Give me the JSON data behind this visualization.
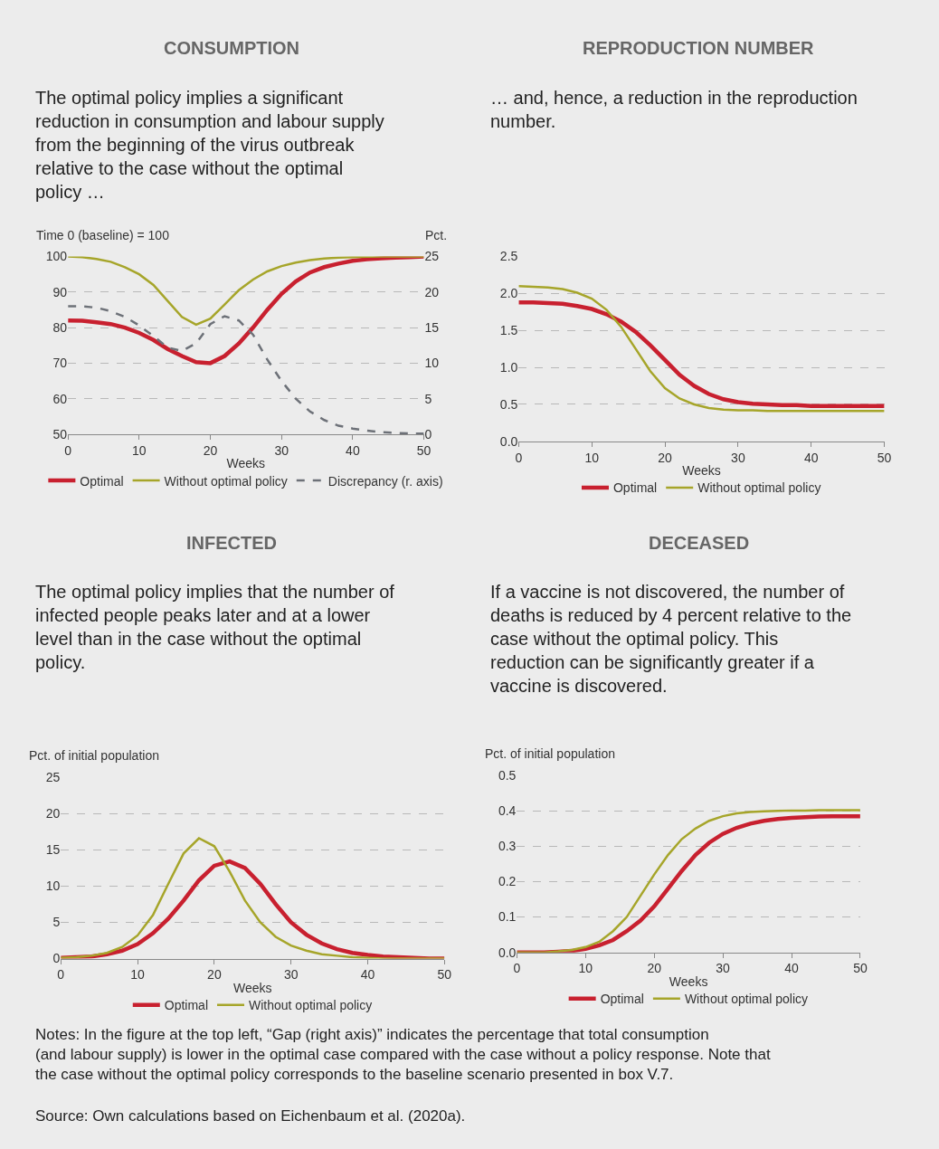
{
  "chart_data": [
    {
      "type": "line",
      "title": "CONSUMPTION",
      "subtitle": "The optimal policy implies a significant reduction in consumption and labour supply from the beginning of the virus outbreak relative to the case without the optimal policy …",
      "xlabel": "Weeks",
      "ylabel": "Time 0 (baseline) = 100",
      "y2label": "Pct.",
      "x": [
        0,
        2,
        4,
        6,
        8,
        10,
        12,
        14,
        16,
        18,
        20,
        22,
        24,
        26,
        28,
        30,
        32,
        34,
        36,
        38,
        40,
        42,
        44,
        46,
        48,
        50
      ],
      "series": [
        {
          "name": "Optimal",
          "color": "#c8202f",
          "values": [
            82,
            81.9,
            81.5,
            81,
            80,
            78.5,
            76.5,
            74,
            72,
            70.3,
            70,
            72,
            75.5,
            80,
            85,
            89.5,
            93,
            95.5,
            97,
            98,
            98.8,
            99.2,
            99.5,
            99.7,
            99.8,
            100
          ]
        },
        {
          "name": "Without optimal policy",
          "color": "#a6a52a",
          "values": [
            100,
            99.8,
            99.3,
            98.5,
            97,
            95,
            92,
            87.5,
            83,
            80.8,
            82.5,
            86.5,
            90.5,
            93.5,
            95.8,
            97.3,
            98.3,
            99,
            99.4,
            99.7,
            99.8,
            99.9,
            100,
            100,
            100,
            100
          ]
        },
        {
          "name": "Discrepancy (r. axis)",
          "color": "#6d7178",
          "line_style": "dashed",
          "axis": "y2",
          "values": [
            18,
            18,
            17.8,
            17.3,
            16.5,
            15.3,
            13.8,
            12.2,
            11.7,
            12.8,
            15.5,
            16.6,
            16,
            14,
            10.5,
            7.5,
            5,
            3.2,
            2,
            1.2,
            0.8,
            0.5,
            0.3,
            0.2,
            0.1,
            0.1
          ]
        }
      ],
      "xlim": [
        0,
        50
      ],
      "xticks": [
        0,
        10,
        20,
        30,
        40,
        50
      ],
      "ylim": [
        50,
        100
      ],
      "yticks": [
        50,
        60,
        70,
        80,
        90,
        100
      ],
      "y2lim": [
        0,
        25
      ],
      "y2ticks": [
        0,
        5,
        10,
        15,
        20,
        25
      ],
      "grid": "y",
      "legend": "bottom",
      "marker": "none"
    },
    {
      "type": "line",
      "title": "REPRODUCTION NUMBER",
      "subtitle": "… and, hence, a reduction in the reproduction number.",
      "xlabel": "Weeks",
      "x": [
        0,
        2,
        4,
        6,
        8,
        10,
        12,
        14,
        16,
        18,
        20,
        22,
        24,
        26,
        28,
        30,
        32,
        34,
        36,
        38,
        40,
        42,
        44,
        46,
        48,
        50
      ],
      "series": [
        {
          "name": "Optimal",
          "color": "#c8202f",
          "values": [
            1.88,
            1.88,
            1.87,
            1.86,
            1.83,
            1.79,
            1.72,
            1.62,
            1.48,
            1.3,
            1.1,
            0.9,
            0.75,
            0.64,
            0.57,
            0.53,
            0.51,
            0.5,
            0.49,
            0.49,
            0.48,
            0.48,
            0.48,
            0.48,
            0.48,
            0.48
          ]
        },
        {
          "name": "Without optimal policy",
          "color": "#a6a52a",
          "values": [
            2.1,
            2.09,
            2.08,
            2.06,
            2.01,
            1.93,
            1.78,
            1.55,
            1.25,
            0.95,
            0.72,
            0.58,
            0.5,
            0.45,
            0.43,
            0.42,
            0.42,
            0.41,
            0.41,
            0.41,
            0.41,
            0.41,
            0.41,
            0.41,
            0.41,
            0.41
          ]
        }
      ],
      "xlim": [
        0,
        50
      ],
      "xticks": [
        0,
        10,
        20,
        30,
        40,
        50
      ],
      "ylim": [
        0,
        2.5
      ],
      "yticks": [
        {
          "value": 0,
          "label": "0.0"
        },
        0.5,
        {
          "value": 1,
          "label": "1.0"
        },
        1.5,
        {
          "value": 2,
          "label": "2.0"
        },
        2.5
      ],
      "grid": "y",
      "legend": "bottom",
      "marker": "none"
    },
    {
      "type": "line",
      "title": "INFECTED",
      "subtitle": "The optimal policy implies that the number of infected people peaks later and at a lower level than in the case without the optimal policy.",
      "xlabel": "Weeks",
      "ylabel": "Pct. of initial population",
      "x": [
        0,
        2,
        4,
        6,
        8,
        10,
        12,
        14,
        16,
        18,
        20,
        22,
        24,
        26,
        28,
        30,
        32,
        34,
        36,
        38,
        40,
        42,
        44,
        46,
        48,
        50
      ],
      "series": [
        {
          "name": "Optimal",
          "color": "#c8202f",
          "values": [
            0.1,
            0.2,
            0.3,
            0.6,
            1.1,
            2,
            3.5,
            5.5,
            8,
            10.8,
            12.8,
            13.4,
            12.5,
            10.3,
            7.5,
            5,
            3.3,
            2.1,
            1.3,
            0.8,
            0.5,
            0.3,
            0.2,
            0.1,
            0,
            0
          ]
        },
        {
          "name": "Without optimal policy",
          "color": "#a6a52a",
          "values": [
            0.1,
            0.2,
            0.4,
            0.8,
            1.6,
            3.2,
            6,
            10.3,
            14.5,
            16.6,
            15.5,
            12,
            8,
            5,
            3,
            1.8,
            1.1,
            0.6,
            0.4,
            0.2,
            0.1,
            0,
            0,
            0,
            0,
            0
          ]
        }
      ],
      "xlim": [
        0,
        50
      ],
      "xticks": [
        0,
        10,
        20,
        30,
        40,
        50
      ],
      "ylim": [
        0,
        25
      ],
      "yticks": [
        0,
        5,
        10,
        15,
        20,
        25
      ],
      "grid": "y",
      "legend": "bottom",
      "marker": "none"
    },
    {
      "type": "line",
      "title": "DECEASED",
      "subtitle": "If a vaccine is not discovered, the number of deaths is reduced by 4 percent relative to the case without the optimal policy. This reduction can be significantly greater if a vaccine is discovered.",
      "xlabel": "Weeks",
      "ylabel": "Pct. of initial population",
      "x": [
        0,
        2,
        4,
        6,
        8,
        10,
        12,
        14,
        16,
        18,
        20,
        22,
        24,
        26,
        28,
        30,
        32,
        34,
        36,
        38,
        40,
        42,
        44,
        46,
        48,
        50
      ],
      "series": [
        {
          "name": "Optimal",
          "color": "#c8202f",
          "values": [
            0,
            0,
            0,
            0.002,
            0.004,
            0.01,
            0.02,
            0.035,
            0.06,
            0.09,
            0.13,
            0.18,
            0.23,
            0.275,
            0.31,
            0.335,
            0.352,
            0.364,
            0.372,
            0.377,
            0.38,
            0.382,
            0.384,
            0.385,
            0.385,
            0.385
          ]
        },
        {
          "name": "Without optimal policy",
          "color": "#a6a52a",
          "values": [
            0,
            0,
            0,
            0.003,
            0.007,
            0.015,
            0.03,
            0.06,
            0.1,
            0.16,
            0.22,
            0.275,
            0.32,
            0.35,
            0.372,
            0.385,
            0.393,
            0.397,
            0.399,
            0.4,
            0.401,
            0.401,
            0.402,
            0.402,
            0.402,
            0.402
          ]
        }
      ],
      "xlim": [
        0,
        50
      ],
      "xticks": [
        0,
        10,
        20,
        30,
        40,
        50
      ],
      "ylim": [
        0,
        0.5
      ],
      "yticks": [
        {
          "value": 0,
          "label": "0.0"
        },
        0.1,
        0.2,
        0.3,
        0.4,
        0.5
      ],
      "grid": "y",
      "legend": "bottom",
      "marker": "none",
      "annotations": [
        "Notes: In the figure at the top left, “Gap (right axis)” indicates the percentage that total consumption (and labour supply) is lower in the optimal case compared with the case without a policy response. Note that the case without the optimal policy corresponds to the baseline scenario presented in box V.7.",
        "Source: Own calculations based on Eichenbaum et al. (2020a)."
      ]
    }
  ]
}
